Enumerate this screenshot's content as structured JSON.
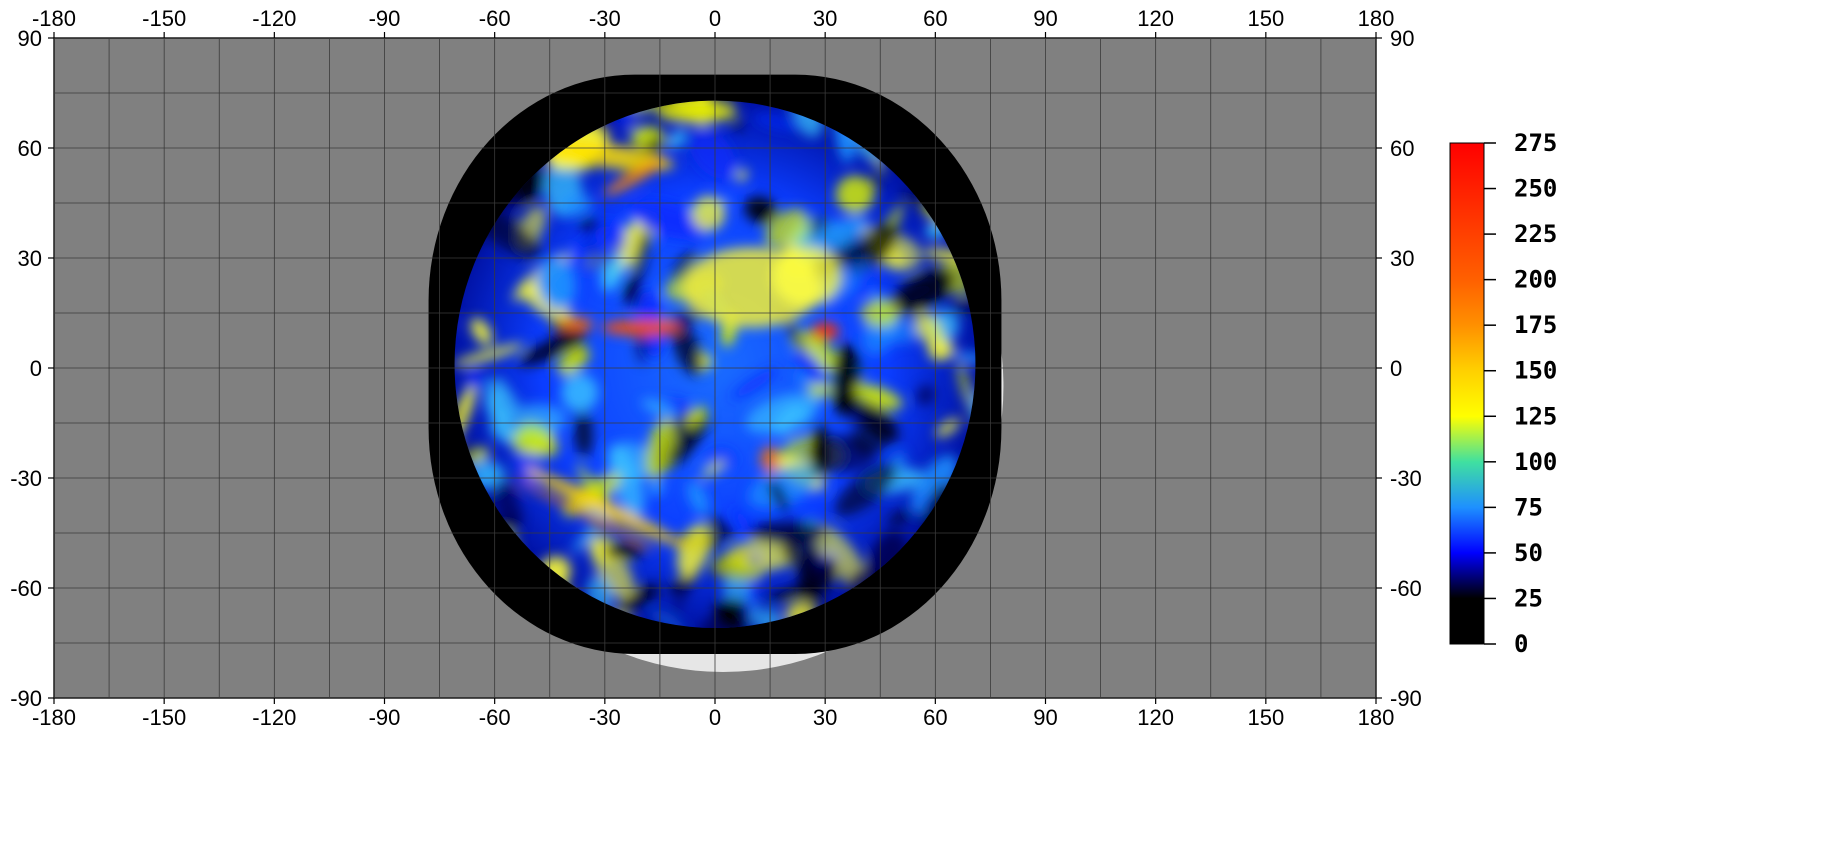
{
  "map": {
    "projection": "equirectangular longitude-latitude grid",
    "lon_range": [
      -180,
      180
    ],
    "lat_range": [
      -90,
      90
    ],
    "grid": true,
    "background_color": "#808080",
    "gridline_color": "#3a3a3a",
    "nodata_color": "#000000",
    "x_ticks": [
      "-180",
      "-150",
      "-120",
      "-90",
      "-60",
      "-30",
      "0",
      "30",
      "60",
      "90",
      "120",
      "150",
      "180"
    ],
    "y_ticks": [
      "90",
      "60",
      "30",
      "0",
      "-30",
      "-60",
      "-90"
    ],
    "disk_center_lon": 0,
    "disk_lon_extent": [
      -78,
      78
    ],
    "disk_lat_extent": [
      -78,
      80
    ]
  },
  "colorbar": {
    "placement": "right",
    "min": 0,
    "max": 275,
    "ticks": [
      "0",
      "25",
      "50",
      "75",
      "100",
      "125",
      "150",
      "175",
      "200",
      "225",
      "250",
      "275"
    ],
    "stops": [
      {
        "value": 0,
        "color": "#000000"
      },
      {
        "value": 25,
        "color": "#000000"
      },
      {
        "value": 50,
        "color": "#0000ff"
      },
      {
        "value": 75,
        "color": "#1e90ff"
      },
      {
        "value": 100,
        "color": "#40e0a0"
      },
      {
        "value": 125,
        "color": "#ffff00"
      },
      {
        "value": 150,
        "color": "#ffd000"
      },
      {
        "value": 175,
        "color": "#ff9000"
      },
      {
        "value": 200,
        "color": "#ff6000"
      },
      {
        "value": 250,
        "color": "#ff2000"
      },
      {
        "value": 275,
        "color": "#ff0000"
      }
    ]
  }
}
